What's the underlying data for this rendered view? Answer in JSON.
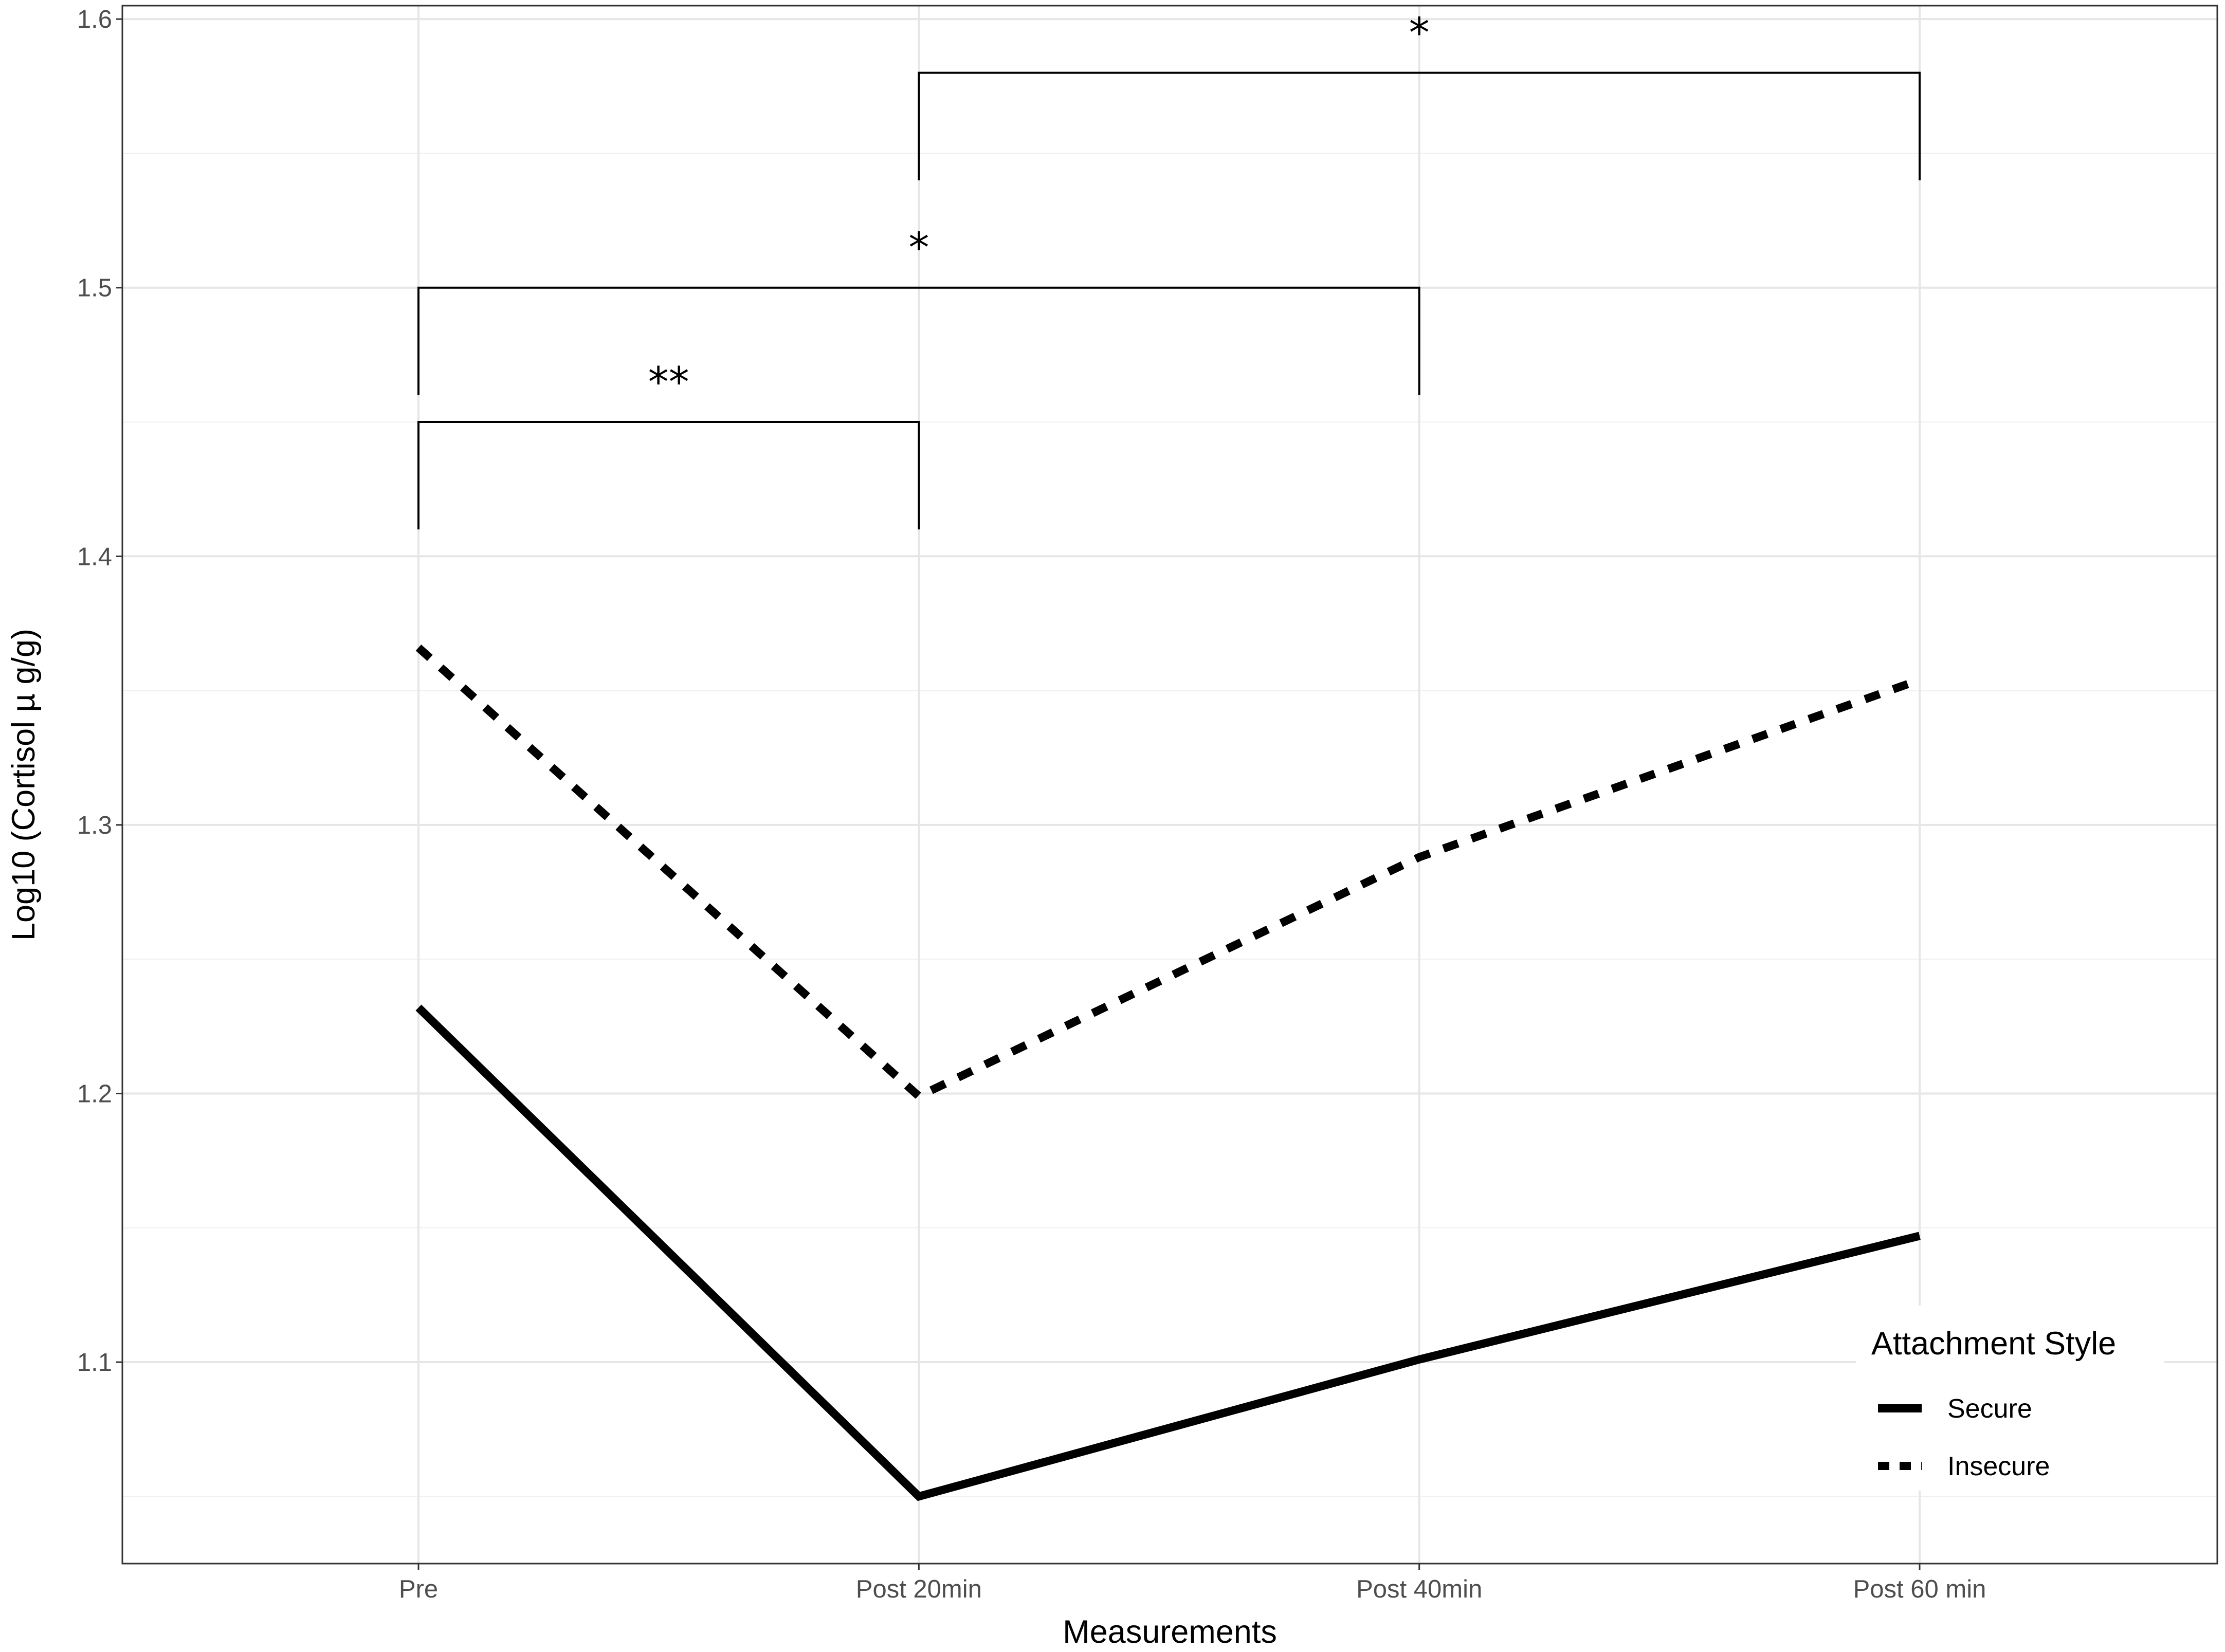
{
  "chart_data": {
    "type": "line",
    "title": "",
    "xlabel": "Measurements",
    "ylabel": "Log10 (Cortisol µ g/g)",
    "categories": [
      "Pre",
      "Post 20min",
      "Post 40min",
      "Post 60 min"
    ],
    "ylim": [
      1.025,
      1.605
    ],
    "yticks": [
      1.1,
      1.2,
      1.3,
      1.4,
      1.5,
      1.6
    ],
    "ytick_labels": [
      "1.1",
      "1.2",
      "1.3",
      "1.4",
      "1.5",
      "1.6"
    ],
    "grid": true,
    "legend": {
      "title": "Attachment Style",
      "position": "bottom-right"
    },
    "series": [
      {
        "name": "Secure",
        "line_style": "solid",
        "color": "#000000",
        "values": [
          1.232,
          1.05,
          1.101,
          1.147
        ]
      },
      {
        "name": "Insecure",
        "line_style": "dashed",
        "color": "#000000",
        "values": [
          1.366,
          1.199,
          1.288,
          1.354
        ]
      }
    ],
    "significance_brackets": [
      {
        "from": "Pre",
        "to": "Post 20min",
        "y": 1.45,
        "label": "**"
      },
      {
        "from": "Pre",
        "to": "Post 40min",
        "y": 1.5,
        "label": "*"
      },
      {
        "from": "Post 20min",
        "to": "Post 60 min",
        "y": 1.58,
        "label": "*"
      }
    ]
  }
}
